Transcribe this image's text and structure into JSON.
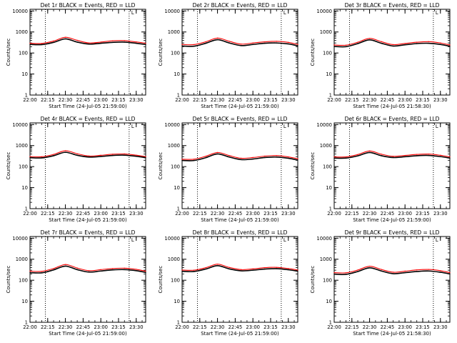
{
  "figure": {
    "background": "#ffffff",
    "colors": {
      "events": "#000000",
      "lld": "#ff0000",
      "axes": "#000000"
    }
  },
  "chart_data": [
    {
      "type": "line",
      "title": "Det 1r BLACK = Events, RED = LLD",
      "xlabel": "Start Time (24-Jul-05 21:59:00)",
      "ylabel": "Counts/sec",
      "yscale": "log",
      "ylim": [
        1,
        12000
      ],
      "xlim": [
        "22:00",
        "23:38"
      ],
      "x_ticks": [
        "22:00",
        "22:15",
        "22:30",
        "22:45",
        "23:00",
        "23:15",
        "23:30"
      ],
      "y_ticks": [
        "1",
        "10",
        "100",
        "1000",
        "10000"
      ],
      "vlines": [
        "22:13",
        "23:24"
      ],
      "marker_label": "L",
      "x": [
        "22:00",
        "22:10",
        "22:20",
        "22:30",
        "22:40",
        "22:50",
        "23:00",
        "23:10",
        "23:20",
        "23:30",
        "23:38"
      ],
      "series": [
        {
          "name": "Events",
          "color": "#000000",
          "values": [
            255,
            250,
            320,
            470,
            330,
            265,
            290,
            320,
            330,
            290,
            255
          ]
        },
        {
          "name": "LLD",
          "color": "#ff0000",
          "values": [
            290,
            285,
            370,
            560,
            400,
            300,
            330,
            380,
            390,
            335,
            290
          ]
        }
      ]
    },
    {
      "type": "line",
      "title": "Det 2r BLACK = Events, RED = LLD",
      "xlabel": "Start Time (24-Jul-05 21:59:00)",
      "ylabel": "Counts/sec",
      "yscale": "log",
      "ylim": [
        1,
        12000
      ],
      "xlim": [
        "22:00",
        "23:38"
      ],
      "x_ticks": [
        "22:00",
        "22:15",
        "22:30",
        "22:45",
        "23:00",
        "23:15",
        "23:30"
      ],
      "y_ticks": [
        "1",
        "10",
        "100",
        "1000",
        "10000"
      ],
      "vlines": [
        "22:13",
        "23:24"
      ],
      "marker_label": "L",
      "x": [
        "22:00",
        "22:10",
        "22:20",
        "22:30",
        "22:40",
        "22:50",
        "23:00",
        "23:10",
        "23:20",
        "23:30",
        "23:38"
      ],
      "series": [
        {
          "name": "Events",
          "color": "#000000",
          "values": [
            215,
            210,
            290,
            430,
            300,
            225,
            255,
            290,
            300,
            270,
            220
          ]
        },
        {
          "name": "LLD",
          "color": "#ff0000",
          "values": [
            255,
            250,
            340,
            510,
            360,
            265,
            300,
            340,
            360,
            320,
            255
          ]
        }
      ]
    },
    {
      "type": "line",
      "title": "Det 3r BLACK = Events, RED = LLD",
      "xlabel": "Start Time (24-Jul-05 21:58:30)",
      "ylabel": "Counts/sec",
      "yscale": "log",
      "ylim": [
        1,
        12000
      ],
      "xlim": [
        "22:00",
        "23:38"
      ],
      "x_ticks": [
        "22:00",
        "22:15",
        "22:30",
        "22:45",
        "23:00",
        "23:15",
        "23:30"
      ],
      "y_ticks": [
        "1",
        "10",
        "100",
        "1000",
        "10000"
      ],
      "vlines": [
        "22:13",
        "23:24"
      ],
      "marker_label": "L",
      "x": [
        "22:00",
        "22:10",
        "22:20",
        "22:30",
        "22:40",
        "22:50",
        "23:00",
        "23:10",
        "23:20",
        "23:30",
        "23:38"
      ],
      "series": [
        {
          "name": "Events",
          "color": "#000000",
          "values": [
            205,
            200,
            280,
            420,
            290,
            215,
            245,
            280,
            290,
            255,
            210
          ]
        },
        {
          "name": "LLD",
          "color": "#ff0000",
          "values": [
            240,
            235,
            325,
            495,
            345,
            250,
            285,
            325,
            345,
            300,
            240
          ]
        }
      ]
    },
    {
      "type": "line",
      "title": "Det 4r BLACK = Events, RED = LLD",
      "xlabel": "Start Time (24-Jul-05 21:59:00)",
      "ylabel": "Counts/sec",
      "yscale": "log",
      "ylim": [
        1,
        12000
      ],
      "xlim": [
        "22:00",
        "23:38"
      ],
      "x_ticks": [
        "22:00",
        "22:15",
        "22:30",
        "22:45",
        "23:00",
        "23:15",
        "23:30"
      ],
      "y_ticks": [
        "1",
        "10",
        "100",
        "1000",
        "10000"
      ],
      "vlines": [
        "22:13",
        "23:24"
      ],
      "marker_label": "L",
      "x": [
        "22:00",
        "22:10",
        "22:20",
        "22:30",
        "22:40",
        "22:50",
        "23:00",
        "23:10",
        "23:20",
        "23:30",
        "23:38"
      ],
      "series": [
        {
          "name": "Events",
          "color": "#000000",
          "values": [
            265,
            260,
            330,
            480,
            345,
            285,
            305,
            340,
            350,
            310,
            265
          ]
        },
        {
          "name": "LLD",
          "color": "#ff0000",
          "values": [
            300,
            295,
            380,
            570,
            410,
            320,
            345,
            390,
            400,
            350,
            300
          ]
        }
      ]
    },
    {
      "type": "line",
      "title": "Det 5r BLACK = Events, RED = LLD",
      "xlabel": "Start Time (24-Jul-05 21:59:00)",
      "ylabel": "Counts/sec",
      "yscale": "log",
      "ylim": [
        1,
        12000
      ],
      "xlim": [
        "22:00",
        "23:38"
      ],
      "x_ticks": [
        "22:00",
        "22:15",
        "22:30",
        "22:45",
        "23:00",
        "23:15",
        "23:30"
      ],
      "y_ticks": [
        "1",
        "10",
        "100",
        "1000",
        "10000"
      ],
      "vlines": [
        "22:13",
        "23:24"
      ],
      "marker_label": "L",
      "x": [
        "22:00",
        "22:10",
        "22:20",
        "22:30",
        "22:40",
        "22:50",
        "23:00",
        "23:10",
        "23:20",
        "23:30",
        "23:38"
      ],
      "series": [
        {
          "name": "Events",
          "color": "#000000",
          "values": [
            195,
            195,
            265,
            400,
            285,
            215,
            230,
            270,
            285,
            250,
            205
          ]
        },
        {
          "name": "LLD",
          "color": "#ff0000",
          "values": [
            225,
            225,
            310,
            470,
            335,
            250,
            270,
            315,
            335,
            290,
            235
          ]
        }
      ]
    },
    {
      "type": "line",
      "title": "Det 6r BLACK = Events, RED = LLD",
      "xlabel": "Start Time (24-Jul-05 21:59:00)",
      "ylabel": "Counts/sec",
      "yscale": "log",
      "ylim": [
        1,
        12000
      ],
      "xlim": [
        "22:00",
        "23:38"
      ],
      "x_ticks": [
        "22:00",
        "22:15",
        "22:30",
        "22:45",
        "23:00",
        "23:15",
        "23:30"
      ],
      "y_ticks": [
        "1",
        "10",
        "100",
        "1000",
        "10000"
      ],
      "vlines": [
        "22:13",
        "23:24"
      ],
      "marker_label": "L",
      "x": [
        "22:00",
        "22:10",
        "22:20",
        "22:30",
        "22:40",
        "22:50",
        "23:00",
        "23:10",
        "23:20",
        "23:30",
        "23:38"
      ],
      "series": [
        {
          "name": "Events",
          "color": "#000000",
          "values": [
            255,
            255,
            325,
            470,
            330,
            270,
            295,
            330,
            340,
            300,
            255
          ]
        },
        {
          "name": "LLD",
          "color": "#ff0000",
          "values": [
            290,
            290,
            375,
            555,
            390,
            310,
            340,
            380,
            395,
            345,
            290
          ]
        }
      ]
    },
    {
      "type": "line",
      "title": "Det 7r BLACK = Events, RED = LLD",
      "xlabel": "Start Time (24-Jul-05 21:59:00)",
      "ylabel": "Counts/sec",
      "yscale": "log",
      "ylim": [
        1,
        12000
      ],
      "xlim": [
        "22:00",
        "23:38"
      ],
      "x_ticks": [
        "22:00",
        "22:15",
        "22:30",
        "22:45",
        "23:00",
        "23:15",
        "23:30"
      ],
      "y_ticks": [
        "1",
        "10",
        "100",
        "1000",
        "10000"
      ],
      "vlines": [
        "22:13",
        "23:24"
      ],
      "marker_label": "L",
      "x": [
        "22:00",
        "22:10",
        "22:20",
        "22:30",
        "22:40",
        "22:50",
        "23:00",
        "23:10",
        "23:20",
        "23:30",
        "23:38"
      ],
      "series": [
        {
          "name": "Events",
          "color": "#000000",
          "values": [
            230,
            225,
            310,
            470,
            320,
            245,
            275,
            310,
            320,
            285,
            235
          ]
        },
        {
          "name": "LLD",
          "color": "#ff0000",
          "values": [
            270,
            265,
            360,
            560,
            380,
            285,
            320,
            360,
            375,
            330,
            270
          ]
        }
      ]
    },
    {
      "type": "line",
      "title": "Det 8r BLACK = Events, RED = LLD",
      "xlabel": "Start Time (24-Jul-05 21:59:00)",
      "ylabel": "Counts/sec",
      "yscale": "log",
      "ylim": [
        1,
        12000
      ],
      "xlim": [
        "22:00",
        "23:38"
      ],
      "x_ticks": [
        "22:00",
        "22:15",
        "22:30",
        "22:45",
        "23:00",
        "23:15",
        "23:30"
      ],
      "y_ticks": [
        "1",
        "10",
        "100",
        "1000",
        "10000"
      ],
      "vlines": [
        "22:13",
        "23:24"
      ],
      "marker_label": "L",
      "x": [
        "22:00",
        "22:10",
        "22:20",
        "22:30",
        "22:40",
        "22:50",
        "23:00",
        "23:10",
        "23:20",
        "23:30",
        "23:38"
      ],
      "series": [
        {
          "name": "Events",
          "color": "#000000",
          "values": [
            265,
            260,
            340,
            490,
            345,
            280,
            300,
            340,
            355,
            315,
            270
          ]
        },
        {
          "name": "LLD",
          "color": "#ff0000",
          "values": [
            305,
            300,
            395,
            580,
            405,
            320,
            345,
            395,
            410,
            360,
            305
          ]
        }
      ]
    },
    {
      "type": "line",
      "title": "Det 9r BLACK = Events, RED = LLD",
      "xlabel": "Start Time (24-Jul-05 21:58:30)",
      "ylabel": "Counts/sec",
      "yscale": "log",
      "ylim": [
        1,
        12000
      ],
      "xlim": [
        "22:00",
        "23:38"
      ],
      "x_ticks": [
        "22:00",
        "22:15",
        "22:30",
        "22:45",
        "23:00",
        "23:15",
        "23:30"
      ],
      "y_ticks": [
        "1",
        "10",
        "100",
        "1000",
        "10000"
      ],
      "vlines": [
        "22:13",
        "23:24"
      ],
      "marker_label": "L",
      "x": [
        "22:00",
        "22:10",
        "22:20",
        "22:30",
        "22:40",
        "22:50",
        "23:00",
        "23:10",
        "23:20",
        "23:30",
        "23:38"
      ],
      "series": [
        {
          "name": "Events",
          "color": "#000000",
          "values": [
            195,
            190,
            260,
            390,
            275,
            205,
            230,
            260,
            275,
            240,
            200
          ]
        },
        {
          "name": "LLD",
          "color": "#ff0000",
          "values": [
            230,
            225,
            305,
            465,
            325,
            240,
            270,
            310,
            325,
            285,
            230
          ]
        }
      ]
    }
  ]
}
